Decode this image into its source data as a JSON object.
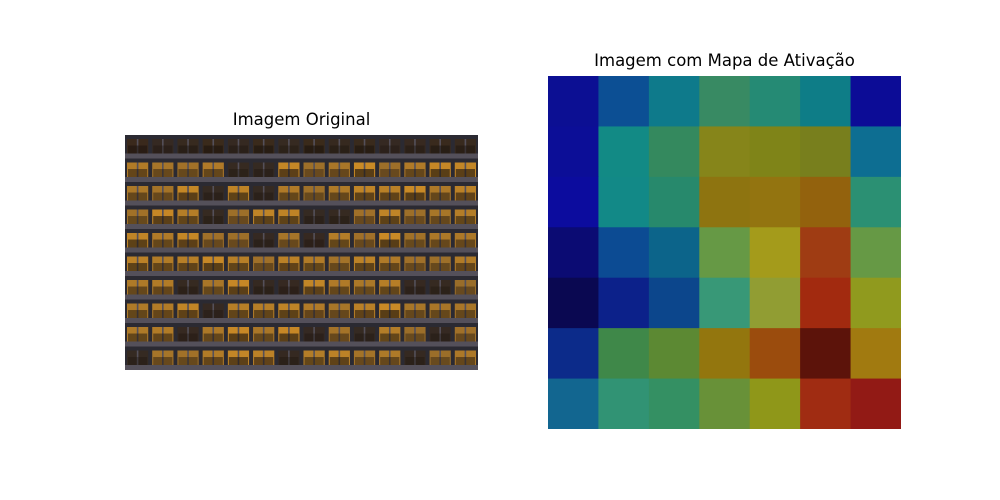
{
  "figure": {
    "left_title": "Imagem Original",
    "right_title": "Imagem com Mapa de Ativação"
  },
  "chart_data": {
    "type": "heatmap",
    "title": "Imagem com Mapa de Ativação",
    "rows": 7,
    "cols": 7,
    "colors": [
      [
        "#0c0f93",
        "#0c4f94",
        "#0e7a8b",
        "#388a63",
        "#258a74",
        "#0e7d87",
        "#0c0c96"
      ],
      [
        "#0c0e97",
        "#128a85",
        "#34895e",
        "#86851a",
        "#7f8418",
        "#787f1d",
        "#0d6e92"
      ],
      [
        "#0c0c9e",
        "#128987",
        "#27896c",
        "#8e7410",
        "#937410",
        "#93620d",
        "#2b9073"
      ],
      [
        "#0b0b73",
        "#0c4b93",
        "#0c648a",
        "#669945",
        "#a49b1b",
        "#9f3c13",
        "#669945"
      ],
      [
        "#0a0851",
        "#0c218a",
        "#0c468c",
        "#389877",
        "#919d33",
        "#a22a0f",
        "#909a1e"
      ],
      [
        "#0c2b8a",
        "#3f8849",
        "#5c8933",
        "#93760e",
        "#9b4c0d",
        "#5c130a",
        "#a17a10"
      ],
      [
        "#126690",
        "#319374",
        "#349063",
        "#689138",
        "#8f9719",
        "#a02c12",
        "#921a15"
      ]
    ],
    "photo_colors": {
      "background": "#2b2a32",
      "window_light": "#c98a26",
      "window_dark": "#3b2a1a",
      "frame": "#54505a"
    }
  }
}
